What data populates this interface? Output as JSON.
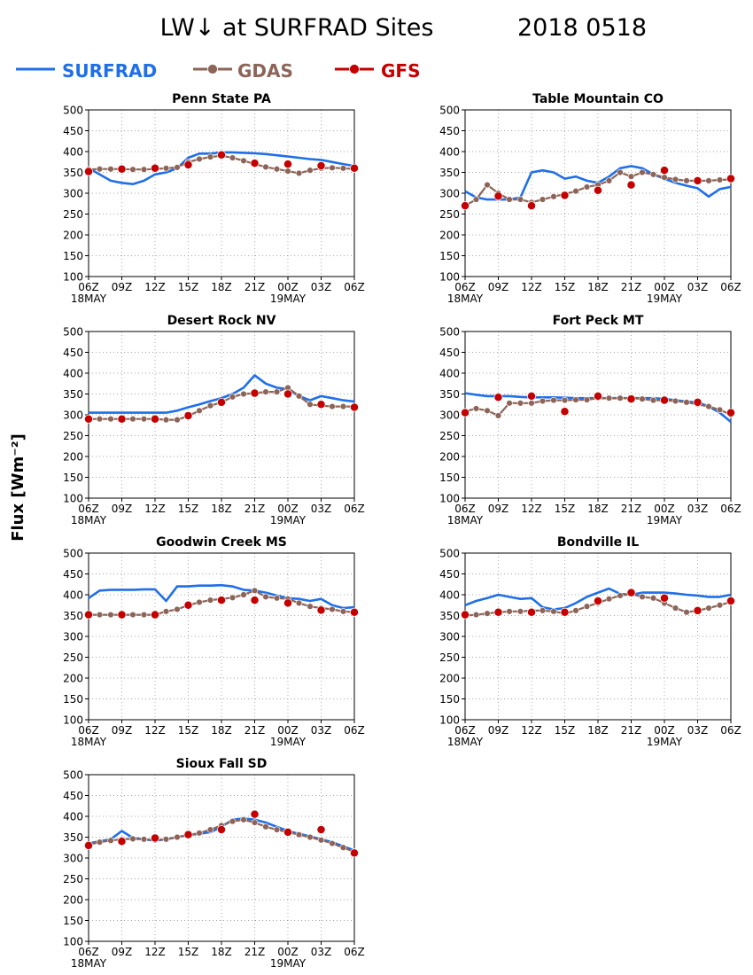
{
  "figure": {
    "title_left": "LW↓ at SURFRAD Sites",
    "title_right": "2018 0518",
    "ylabel": "Flux [Wm⁻²]"
  },
  "legend": [
    {
      "name": "SURFRAD",
      "color": "#1f6fe8",
      "marker": "none"
    },
    {
      "name": "GDAS",
      "color": "#8c6458",
      "marker": "circle-cross"
    },
    {
      "name": "GFS",
      "color": "#c40000",
      "marker": "circle-cross"
    }
  ],
  "axes": {
    "x_tick_labels": [
      "06Z",
      "09Z",
      "12Z",
      "15Z",
      "18Z",
      "21Z",
      "00Z",
      "03Z",
      "06Z"
    ],
    "x_date_labels": [
      "18MAY",
      "19MAY"
    ],
    "y_ticks": [
      100,
      150,
      200,
      250,
      300,
      350,
      400,
      450,
      500
    ],
    "ylim": [
      100,
      500
    ],
    "grid": true
  },
  "chart_data": [
    {
      "type": "line",
      "title": "Penn State PA",
      "x": [
        0,
        1,
        2,
        3,
        4,
        5,
        6,
        7,
        8,
        9,
        10,
        11,
        12,
        13,
        14,
        15,
        16,
        17,
        18,
        19,
        20,
        21,
        22,
        23,
        24
      ],
      "series": [
        {
          "name": "SURFRAD",
          "values": [
            360,
            345,
            330,
            325,
            322,
            330,
            345,
            350,
            360,
            385,
            395,
            395,
            398,
            398,
            397,
            396,
            394,
            391,
            388,
            385,
            382,
            380,
            375,
            370,
            365
          ]
        },
        {
          "name": "GDAS",
          "values": [
            357,
            358,
            358,
            358,
            357,
            357,
            358,
            360,
            362,
            375,
            382,
            387,
            390,
            385,
            378,
            370,
            363,
            358,
            353,
            348,
            355,
            360,
            361,
            360,
            358
          ]
        },
        {
          "name": "GFS",
          "x": [
            0,
            3,
            6,
            9,
            12,
            15,
            18,
            21,
            24
          ],
          "values": [
            352,
            358,
            360,
            368,
            392,
            372,
            370,
            366,
            360
          ]
        }
      ]
    },
    {
      "type": "line",
      "title": "Table Mountain CO",
      "x": [
        0,
        1,
        2,
        3,
        4,
        5,
        6,
        7,
        8,
        9,
        10,
        11,
        12,
        13,
        14,
        15,
        16,
        17,
        18,
        19,
        20,
        21,
        22,
        23,
        24
      ],
      "series": [
        {
          "name": "SURFRAD",
          "values": [
            305,
            290,
            285,
            285,
            285,
            290,
            350,
            355,
            350,
            335,
            340,
            330,
            325,
            340,
            360,
            365,
            360,
            345,
            335,
            325,
            318,
            312,
            292,
            310,
            315
          ]
        },
        {
          "name": "GDAS",
          "values": [
            270,
            285,
            320,
            300,
            285,
            285,
            278,
            285,
            292,
            298,
            305,
            315,
            320,
            330,
            350,
            340,
            350,
            345,
            338,
            333,
            330,
            330,
            330,
            332,
            333
          ]
        },
        {
          "name": "GFS",
          "x": [
            0,
            3,
            6,
            9,
            12,
            15,
            18,
            21,
            24
          ],
          "values": [
            270,
            293,
            270,
            295,
            307,
            320,
            355,
            330,
            335
          ]
        }
      ]
    },
    {
      "type": "line",
      "title": "Desert Rock NV",
      "x": [
        0,
        1,
        2,
        3,
        4,
        5,
        6,
        7,
        8,
        9,
        10,
        11,
        12,
        13,
        14,
        15,
        16,
        17,
        18,
        19,
        20,
        21,
        22,
        23,
        24
      ],
      "series": [
        {
          "name": "SURFRAD",
          "values": [
            305,
            305,
            305,
            305,
            305,
            305,
            305,
            305,
            310,
            318,
            325,
            333,
            340,
            350,
            365,
            395,
            375,
            365,
            362,
            345,
            335,
            345,
            340,
            335,
            332
          ]
        },
        {
          "name": "GDAS",
          "values": [
            290,
            290,
            290,
            290,
            290,
            290,
            290,
            288,
            288,
            297,
            310,
            322,
            330,
            343,
            350,
            352,
            355,
            355,
            365,
            345,
            325,
            322,
            320,
            320,
            320
          ]
        },
        {
          "name": "GFS",
          "x": [
            0,
            3,
            6,
            9,
            12,
            15,
            18,
            21,
            24
          ],
          "values": [
            290,
            290,
            290,
            298,
            330,
            352,
            350,
            325,
            318
          ]
        }
      ]
    },
    {
      "type": "line",
      "title": "Fort Peck MT",
      "x": [
        0,
        1,
        2,
        3,
        4,
        5,
        6,
        7,
        8,
        9,
        10,
        11,
        12,
        13,
        14,
        15,
        16,
        17,
        18,
        19,
        20,
        21,
        22,
        23,
        24
      ],
      "series": [
        {
          "name": "SURFRAD",
          "values": [
            352,
            348,
            345,
            345,
            345,
            343,
            342,
            342,
            342,
            341,
            340,
            340,
            340,
            340,
            340,
            340,
            340,
            340,
            338,
            335,
            332,
            330,
            320,
            305,
            283
          ]
        },
        {
          "name": "GDAS",
          "values": [
            308,
            315,
            310,
            298,
            328,
            328,
            328,
            333,
            335,
            335,
            336,
            336,
            340,
            340,
            340,
            340,
            338,
            335,
            335,
            333,
            330,
            325,
            320,
            312,
            300
          ]
        },
        {
          "name": "GFS",
          "x": [
            0,
            3,
            6,
            9,
            12,
            15,
            18,
            21,
            24
          ],
          "values": [
            305,
            342,
            345,
            308,
            345,
            338,
            335,
            330,
            305
          ]
        }
      ]
    },
    {
      "type": "line",
      "title": "Goodwin Creek MS",
      "x": [
        0,
        1,
        2,
        3,
        4,
        5,
        6,
        7,
        8,
        9,
        10,
        11,
        12,
        13,
        14,
        15,
        16,
        17,
        18,
        19,
        20,
        21,
        22,
        23,
        24
      ],
      "series": [
        {
          "name": "SURFRAD",
          "values": [
            392,
            410,
            412,
            412,
            412,
            413,
            413,
            385,
            420,
            420,
            422,
            422,
            423,
            420,
            412,
            410,
            405,
            398,
            392,
            390,
            385,
            390,
            375,
            368,
            370
          ]
        },
        {
          "name": "GDAS",
          "values": [
            352,
            352,
            352,
            352,
            352,
            352,
            352,
            360,
            365,
            375,
            382,
            387,
            390,
            393,
            400,
            410,
            395,
            392,
            390,
            380,
            372,
            368,
            365,
            360,
            358
          ]
        },
        {
          "name": "GFS",
          "x": [
            0,
            3,
            6,
            9,
            12,
            15,
            18,
            21,
            24
          ],
          "values": [
            352,
            352,
            352,
            375,
            387,
            387,
            380,
            363,
            358
          ]
        }
      ]
    },
    {
      "type": "line",
      "title": "Bondville IL",
      "x": [
        0,
        1,
        2,
        3,
        4,
        5,
        6,
        7,
        8,
        9,
        10,
        11,
        12,
        13,
        14,
        15,
        16,
        17,
        18,
        19,
        20,
        21,
        22,
        23,
        24
      ],
      "series": [
        {
          "name": "SURFRAD",
          "values": [
            375,
            385,
            392,
            400,
            395,
            390,
            392,
            370,
            365,
            368,
            380,
            395,
            405,
            415,
            402,
            400,
            405,
            405,
            405,
            403,
            400,
            398,
            395,
            395,
            400
          ]
        },
        {
          "name": "GDAS",
          "values": [
            350,
            352,
            355,
            358,
            360,
            360,
            362,
            362,
            360,
            355,
            362,
            372,
            380,
            390,
            398,
            402,
            395,
            392,
            380,
            368,
            358,
            362,
            368,
            375,
            383
          ]
        },
        {
          "name": "GFS",
          "x": [
            0,
            3,
            6,
            9,
            12,
            15,
            18,
            21,
            24
          ],
          "values": [
            352,
            358,
            358,
            358,
            385,
            405,
            392,
            362,
            385
          ]
        }
      ]
    },
    {
      "type": "line",
      "title": "Sioux Fall SD",
      "x": [
        0,
        1,
        2,
        3,
        4,
        5,
        6,
        7,
        8,
        9,
        10,
        11,
        12,
        13,
        14,
        15,
        16,
        17,
        18,
        19,
        20,
        21,
        22,
        23,
        24
      ],
      "series": [
        {
          "name": "SURFRAD",
          "values": [
            335,
            340,
            345,
            365,
            348,
            345,
            342,
            345,
            350,
            355,
            358,
            362,
            375,
            392,
            395,
            392,
            385,
            375,
            365,
            358,
            352,
            345,
            338,
            328,
            318
          ]
        },
        {
          "name": "GDAS",
          "values": [
            332,
            338,
            342,
            345,
            346,
            345,
            343,
            345,
            350,
            355,
            360,
            368,
            378,
            388,
            392,
            385,
            375,
            368,
            362,
            356,
            350,
            343,
            335,
            325,
            315
          ]
        },
        {
          "name": "GFS",
          "x": [
            0,
            3,
            6,
            9,
            12,
            15,
            18,
            21,
            24
          ],
          "values": [
            330,
            340,
            348,
            356,
            368,
            405,
            362,
            368,
            312
          ]
        }
      ]
    }
  ]
}
